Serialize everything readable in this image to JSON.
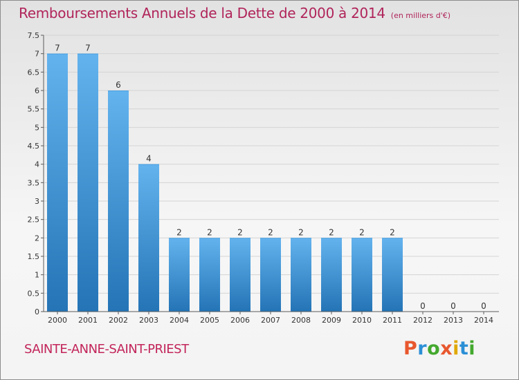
{
  "header": {
    "title": "Remboursements Annuels de la Dette de 2000 à 2014",
    "unit": "(en milliers d'€)"
  },
  "footer": {
    "commune": "SAINTE-ANNE-SAINT-PRIEST",
    "brand": "Proxiti"
  },
  "colors": {
    "title": "#b0245a",
    "bar_top": "#63b3ee",
    "bar_bottom": "#2474b6",
    "grid": "#d4d4d4",
    "axis": "#5a5a5a"
  },
  "chart_data": {
    "type": "bar",
    "categories": [
      "2000",
      "2001",
      "2002",
      "2003",
      "2004",
      "2005",
      "2006",
      "2007",
      "2008",
      "2009",
      "2010",
      "2011",
      "2012",
      "2013",
      "2014"
    ],
    "values": [
      7,
      7,
      6,
      4,
      2,
      2,
      2,
      2,
      2,
      2,
      2,
      2,
      0,
      0,
      0
    ],
    "data_labels": [
      "7",
      "7",
      "6",
      "4",
      "2",
      "2",
      "2",
      "2",
      "2",
      "2",
      "2",
      "2",
      "0",
      "0",
      "0"
    ],
    "y_ticks": [
      "0",
      "0.5",
      "1",
      "1.5",
      "2",
      "2.5",
      "3",
      "3.5",
      "4",
      "4.5",
      "5",
      "5.5",
      "6",
      "6.5",
      "7",
      "7.5"
    ],
    "ylim": [
      0,
      7.5
    ],
    "grid": true,
    "legend": "none"
  }
}
